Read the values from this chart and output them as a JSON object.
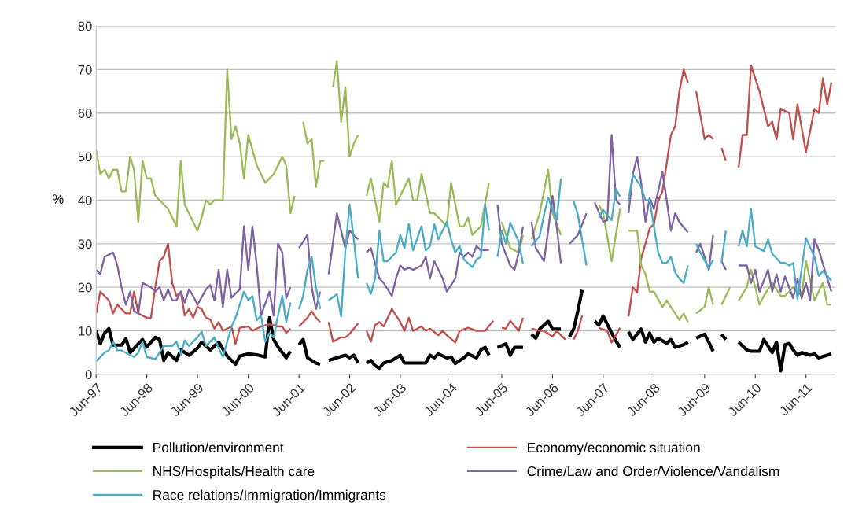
{
  "chart_data": {
    "type": "line",
    "ylabel": "%",
    "ylim": [
      0,
      80
    ],
    "yticks": [
      0,
      10,
      20,
      30,
      40,
      50,
      60,
      70,
      80
    ],
    "xlim": [
      "1997-06",
      "2012-01"
    ],
    "xticks": [
      {
        "value": "1997-06",
        "label": "Jun-97"
      },
      {
        "value": "1998-06",
        "label": "Jun-98"
      },
      {
        "value": "1999-06",
        "label": "Jun-99"
      },
      {
        "value": "2000-06",
        "label": "Jun-00"
      },
      {
        "value": "2001-06",
        "label": "Jun-01"
      },
      {
        "value": "2002-06",
        "label": "Jun-02"
      },
      {
        "value": "2003-06",
        "label": "Jun-03"
      },
      {
        "value": "2004-06",
        "label": "Jun-04"
      },
      {
        "value": "2005-06",
        "label": "Jun-05"
      },
      {
        "value": "2006-06",
        "label": "Jun-06"
      },
      {
        "value": "2007-06",
        "label": "Jun-07"
      },
      {
        "value": "2008-06",
        "label": "Jun-08"
      },
      {
        "value": "2009-06",
        "label": "Jun-09"
      },
      {
        "value": "2010-06",
        "label": "Jun-10"
      },
      {
        "value": "2011-06",
        "label": "Jun-11"
      }
    ],
    "grid": "y",
    "legend": "bottom",
    "marker": "none",
    "line_style": "solid",
    "series": [
      {
        "name": "Pollution/environment",
        "color": "#000000",
        "x": [
          "1997-06",
          "1997-07",
          "1997-08",
          "1997-09",
          "1997-10",
          "1997-12",
          "1998-01",
          "1998-02",
          "1998-04",
          "1998-05",
          "1998-06",
          "1998-08",
          "1998-09",
          "1998-10",
          "1998-11",
          "1999-01",
          "1999-02",
          "1999-04",
          "1999-06",
          "1999-07",
          "1999-09",
          "1999-11",
          "2000-01",
          "2000-03",
          "2000-04",
          "2000-06",
          "2000-08",
          "2000-10",
          "2000-11",
          "2000-12",
          "2001-01",
          "2001-02",
          "2001-03",
          "2001-04",
          "2001-05",
          "2001-06",
          "2001-07",
          "2001-08",
          "2001-10",
          "2001-11",
          "2001-12",
          "2002-01",
          "2002-03",
          "2002-05",
          "2002-06",
          "2002-07",
          "2002-08",
          "2002-09",
          "2002-10",
          "2002-11",
          "2002-12",
          "2003-01",
          "2003-02",
          "2003-04",
          "2003-06",
          "2003-07",
          "2003-09",
          "2003-12",
          "2004-01",
          "2004-02",
          "2004-03",
          "2004-05",
          "2004-06",
          "2004-07",
          "2004-09",
          "2004-10",
          "2004-12",
          "2005-01",
          "2005-02",
          "2005-03",
          "2005-04",
          "2005-05",
          "2005-07",
          "2005-08",
          "2005-09",
          "2005-10",
          "2005-11",
          "2005-12",
          "2006-01",
          "2006-02",
          "2006-03",
          "2006-05",
          "2006-06",
          "2006-08",
          "2006-09",
          "2006-10",
          "2006-11",
          "2006-12",
          "2007-01",
          "2007-02",
          "2007-04",
          "2007-05",
          "2007-06",
          "2007-08",
          "2007-09",
          "2007-10",
          "2007-11",
          "2007-12",
          "2008-01",
          "2008-03",
          "2008-04",
          "2008-05",
          "2008-06",
          "2008-07",
          "2008-09",
          "2008-10",
          "2008-11",
          "2009-01",
          "2009-02",
          "2009-03",
          "2009-04",
          "2009-06",
          "2009-07",
          "2009-08",
          "2009-09",
          "2009-10",
          "2009-11",
          "2009-12",
          "2010-02",
          "2010-04",
          "2010-05",
          "2010-07",
          "2010-08",
          "2010-10",
          "2010-11",
          "2010-12",
          "2011-01",
          "2011-02",
          "2011-03",
          "2011-04",
          "2011-05",
          "2011-07",
          "2011-08",
          "2011-09",
          "2011-11",
          "2011-12"
        ],
        "values": [
          10,
          7,
          9.5,
          10.5,
          6.7,
          6.7,
          8.2,
          5,
          7,
          8,
          6.3,
          8.5,
          8,
          3.2,
          5,
          3.2,
          5.6,
          4.4,
          6,
          7.4,
          5.6,
          7.4,
          4.2,
          2.3,
          4.2,
          4.7,
          4.5,
          4,
          13,
          8,
          6.3,
          5,
          3.8,
          5.3,
          null,
          6.8,
          8,
          3.8,
          2.6,
          2.3,
          null,
          3.2,
          3.8,
          4.4,
          3.8,
          4.4,
          2.6,
          null,
          2.6,
          3.2,
          2,
          1.4,
          2.6,
          3.2,
          4.4,
          2.6,
          2.6,
          2.6,
          4.4,
          3.8,
          4.7,
          3.8,
          4,
          2.5,
          3.8,
          4.7,
          3.8,
          5.6,
          6.2,
          4.4,
          null,
          6.2,
          7,
          4.4,
          6.2,
          6.2,
          6.2,
          null,
          9.2,
          8.3,
          10.4,
          12.2,
          10.4,
          10.4,
          null,
          8.6,
          10.4,
          14.6,
          19.4,
          null,
          12.2,
          11.3,
          13.4,
          9.5,
          7.7,
          6.2,
          null,
          9.8,
          8,
          10.4,
          7.4,
          9.5,
          7.4,
          8.3,
          7.1,
          8,
          6.2,
          6.8,
          7.4,
          null,
          8.3,
          9.2,
          7.4,
          5.3,
          null,
          9.2,
          8,
          null,
          7.4,
          5.6,
          5.3,
          5.3,
          8,
          5,
          7.4,
          0.8,
          6.8,
          7.1,
          5.6,
          4.4,
          5,
          4.4,
          4.7,
          3.8,
          4.4,
          4.7
        ]
      },
      {
        "name": "Economy/economic situation",
        "color": "#c0504d",
        "x": [
          "1997-06",
          "1997-07",
          "1997-08",
          "1997-09",
          "1997-10",
          "1997-11",
          "1997-12",
          "1998-01",
          "1998-02",
          "1998-03",
          "1998-04",
          "1998-06",
          "1998-07",
          "1998-08",
          "1998-09",
          "1998-10",
          "1998-11",
          "1998-12",
          "1999-01",
          "1999-02",
          "1999-03",
          "1999-04",
          "1999-05",
          "1999-06",
          "1999-07",
          "1999-08",
          "1999-09",
          "1999-10",
          "1999-11",
          "1999-12",
          "2000-01",
          "2000-02",
          "2000-03",
          "2000-04",
          "2000-06",
          "2000-07",
          "2000-09",
          "2000-11",
          "2001-01",
          "2001-02",
          "2001-03",
          "2001-04",
          "2001-05",
          "2001-06",
          "2001-08",
          "2001-09",
          "2001-10",
          "2001-11",
          "2001-12",
          "2002-01",
          "2002-02",
          "2002-04",
          "2002-05",
          "2002-06",
          "2002-08",
          "2002-09",
          "2002-10",
          "2002-11",
          "2002-12",
          "2003-01",
          "2003-02",
          "2003-04",
          "2003-06",
          "2003-07",
          "2003-08",
          "2003-09",
          "2003-11",
          "2003-12",
          "2004-01",
          "2004-03",
          "2004-04",
          "2004-05",
          "2004-07",
          "2004-08",
          "2004-10",
          "2004-12",
          "2005-02",
          "2005-04",
          "2005-05",
          "2005-06",
          "2005-07",
          "2005-08",
          "2005-10",
          "2005-11",
          "2005-12",
          "2006-01",
          "2006-03",
          "2006-04",
          "2006-06",
          "2006-07",
          "2006-09",
          "2006-10",
          "2006-11",
          "2006-12",
          "2007-01",
          "2007-02",
          "2007-05",
          "2007-07",
          "2007-08",
          "2007-10",
          "2007-11",
          "2007-12",
          "2008-01",
          "2008-02",
          "2008-03",
          "2008-05",
          "2008-06",
          "2008-07",
          "2008-08",
          "2008-09",
          "2008-10",
          "2008-11",
          "2008-12",
          "2009-01",
          "2009-02",
          "2009-03",
          "2009-04",
          "2009-06",
          "2009-07",
          "2009-08",
          "2009-09",
          "2009-10",
          "2009-11",
          "2009-12",
          "2010-02",
          "2010-03",
          "2010-04",
          "2010-05",
          "2010-07",
          "2010-08",
          "2010-09",
          "2010-10",
          "2010-11",
          "2010-12",
          "2011-02",
          "2011-03",
          "2011-04",
          "2011-06",
          "2011-08",
          "2011-09",
          "2011-10",
          "2011-11",
          "2011-12"
        ],
        "values": [
          14,
          19,
          18,
          17,
          14,
          16,
          15,
          14,
          14,
          19,
          14,
          13,
          13,
          20,
          26,
          27,
          30,
          21,
          18,
          19,
          13.5,
          15,
          13,
          15.5,
          15,
          13,
          12.6,
          10.5,
          12,
          10,
          10.5,
          11,
          7,
          10.7,
          11,
          10,
          11,
          11.5,
          11,
          11,
          9.5,
          10.5,
          null,
          11,
          13,
          14.5,
          13,
          12,
          null,
          12,
          7.5,
          8.5,
          8.5,
          9.3,
          11.7,
          null,
          10,
          7.5,
          11.3,
          12,
          11,
          15,
          12,
          10,
          13,
          10,
          11,
          10,
          10.5,
          9,
          10,
          9,
          7.3,
          10,
          10.7,
          10,
          10,
          12.3,
          null,
          10.7,
          10.5,
          12.3,
          10,
          13,
          null,
          10.5,
          10,
          10,
          8.7,
          10,
          8,
          null,
          8,
          10,
          13.5,
          null,
          10.7,
          10,
          7.3,
          10.7,
          null,
          13.3,
          20,
          18.8,
          26.6,
          33.5,
          34.5,
          39.8,
          42,
          48.5,
          55,
          57,
          65,
          70,
          67,
          null,
          65,
          54,
          55,
          54,
          null,
          52,
          49,
          null,
          47.5,
          55,
          55,
          71,
          65,
          61,
          57,
          58,
          54,
          61,
          60,
          54,
          62,
          51,
          61,
          60,
          68,
          62,
          67
        ]
      },
      {
        "name": "NHS/Hospitals/Health care",
        "color": "#9bbb59",
        "x": [
          "1997-06",
          "1997-07",
          "1997-08",
          "1997-09",
          "1997-10",
          "1997-11",
          "1997-12",
          "1998-01",
          "1998-02",
          "1998-03",
          "1998-04",
          "1998-05",
          "1998-06",
          "1998-07",
          "1998-08",
          "1998-11",
          "1999-01",
          "1999-02",
          "1999-03",
          "1999-05",
          "1999-06",
          "1999-07",
          "1999-08",
          "1999-09",
          "1999-10",
          "1999-11",
          "1999-12",
          "2000-01",
          "2000-02",
          "2000-03",
          "2000-04",
          "2000-05",
          "2000-06",
          "2000-08",
          "2000-10",
          "2000-12",
          "2001-02",
          "2001-03",
          "2001-04",
          "2001-05",
          "2001-06",
          "2001-07",
          "2001-08",
          "2001-09",
          "2001-10",
          "2001-11",
          "2001-12",
          "2002-01",
          "2002-02",
          "2002-03",
          "2002-04",
          "2002-05",
          "2002-06",
          "2002-07",
          "2002-08",
          "2002-09",
          "2002-10",
          "2002-11",
          "2003-01",
          "2003-02",
          "2003-03",
          "2003-04",
          "2003-05",
          "2003-08",
          "2003-09",
          "2003-10",
          "2003-11",
          "2004-01",
          "2004-02",
          "2004-04",
          "2004-05",
          "2004-06",
          "2004-08",
          "2004-09",
          "2004-10",
          "2004-11",
          "2005-01",
          "2005-03",
          "2005-04",
          "2005-06",
          "2005-08",
          "2005-10",
          "2005-11",
          "2005-12",
          "2006-01",
          "2006-03",
          "2006-05",
          "2006-06",
          "2006-08",
          "2006-09",
          "2007-05",
          "2007-06",
          "2007-08",
          "2007-10",
          "2007-11",
          "2007-12",
          "2008-02",
          "2008-03",
          "2008-04",
          "2008-05",
          "2008-06",
          "2008-08",
          "2008-09",
          "2008-10",
          "2008-12",
          "2009-01",
          "2009-02",
          "2009-03",
          "2009-04",
          "2009-06",
          "2009-07",
          "2009-08",
          "2009-09",
          "2009-10",
          "2009-12",
          "2010-01",
          "2010-02",
          "2010-04",
          "2010-05",
          "2010-07",
          "2010-08",
          "2010-10",
          "2010-12",
          "2011-01",
          "2011-03",
          "2011-05",
          "2011-06",
          "2011-08",
          "2011-10",
          "2011-11",
          "2011-12"
        ],
        "values": [
          51.5,
          46,
          47,
          45,
          47,
          47,
          42,
          42,
          50,
          47,
          35,
          49,
          45,
          45,
          41,
          38,
          34,
          49,
          39,
          35,
          33,
          36,
          40,
          39,
          40,
          40,
          40,
          70,
          54,
          57,
          53,
          45,
          55,
          48,
          44,
          46,
          50,
          48,
          37,
          41,
          null,
          58,
          53,
          54,
          43,
          49,
          49,
          null,
          66,
          72,
          58,
          66,
          50,
          53,
          55,
          null,
          41,
          45,
          35,
          44,
          43,
          49,
          39,
          45,
          40,
          40,
          46,
          37,
          37,
          35,
          34,
          44,
          34,
          34,
          36,
          32,
          34,
          44,
          null,
          35,
          29,
          28,
          32,
          null,
          31,
          37,
          47,
          37,
          32,
          null,
          39,
          37,
          26,
          38,
          null,
          33,
          33,
          25,
          23,
          19,
          19,
          15.5,
          17,
          15.5,
          12.5,
          14,
          12,
          null,
          14,
          15.5,
          20,
          16,
          null,
          16,
          20,
          null,
          17,
          20,
          24,
          16,
          18,
          21,
          18,
          18,
          20,
          18,
          26,
          17,
          21,
          16,
          16
        ]
      },
      {
        "name": "Crime/Law and Order/Violence/Vandalism",
        "color": "#8064a2",
        "x": [
          "1997-06",
          "1997-07",
          "1997-08",
          "1997-10",
          "1997-11",
          "1997-12",
          "1998-01",
          "1998-02",
          "1998-03",
          "1998-04",
          "1998-05",
          "1998-07",
          "1998-08",
          "1998-09",
          "1998-10",
          "1998-11",
          "1998-12",
          "1999-01",
          "1999-02",
          "1999-03",
          "1999-04",
          "1999-05",
          "1999-06",
          "1999-08",
          "1999-09",
          "1999-10",
          "1999-11",
          "1999-12",
          "2000-01",
          "2000-02",
          "2000-04",
          "2000-05",
          "2000-06",
          "2000-07",
          "2000-08",
          "2000-09",
          "2000-11",
          "2000-12",
          "2001-01",
          "2001-02",
          "2001-03",
          "2001-04",
          "2001-05",
          "2001-06",
          "2001-08",
          "2001-09",
          "2001-10",
          "2001-11",
          "2001-12",
          "2002-01",
          "2002-03",
          "2002-05",
          "2002-06",
          "2002-08",
          "2002-09",
          "2002-10",
          "2002-11",
          "2003-01",
          "2003-02",
          "2003-04",
          "2003-05",
          "2003-06",
          "2003-07",
          "2003-08",
          "2003-09",
          "2003-11",
          "2003-12",
          "2004-01",
          "2004-02",
          "2004-04",
          "2004-05",
          "2004-06",
          "2004-07",
          "2004-08",
          "2004-09",
          "2004-10",
          "2004-11",
          "2004-12",
          "2005-01",
          "2005-03",
          "2005-04",
          "2005-05",
          "2005-06",
          "2005-08",
          "2005-09",
          "2005-10",
          "2005-11",
          "2005-12",
          "2006-01",
          "2006-02",
          "2006-04",
          "2006-05",
          "2006-06",
          "2006-07",
          "2006-08",
          "2006-09",
          "2006-10",
          "2006-12",
          "2007-02",
          "2007-03",
          "2007-04",
          "2007-06",
          "2007-07",
          "2007-08",
          "2007-09",
          "2007-10",
          "2007-11",
          "2007-12",
          "2008-01",
          "2008-02",
          "2008-03",
          "2008-04",
          "2008-05",
          "2008-06",
          "2008-07",
          "2008-08",
          "2008-09",
          "2008-10",
          "2008-11",
          "2008-12",
          "2009-02",
          "2009-03",
          "2009-04",
          "2009-05",
          "2009-07",
          "2009-08",
          "2009-09",
          "2009-10",
          "2009-11",
          "2009-12",
          "2010-02",
          "2010-04",
          "2010-05",
          "2010-06",
          "2010-07",
          "2010-09",
          "2010-10",
          "2010-11",
          "2010-12",
          "2011-01",
          "2011-03",
          "2011-04",
          "2011-05",
          "2011-06",
          "2011-07",
          "2011-08",
          "2011-09",
          "2011-11",
          "2011-12"
        ],
        "values": [
          24,
          23,
          27,
          28,
          25,
          20,
          16,
          19,
          14.5,
          14,
          21,
          20,
          19,
          20,
          17,
          19.5,
          17,
          17,
          19,
          16.5,
          19.5,
          18,
          16,
          19.5,
          20.5,
          17,
          24,
          15.5,
          24,
          17.6,
          19.5,
          34,
          24,
          34,
          25,
          13.5,
          19,
          13.5,
          30,
          28,
          17.5,
          20,
          null,
          29,
          32,
          20,
          15,
          19,
          null,
          23,
          37,
          29,
          33,
          31,
          null,
          28,
          29,
          22,
          21,
          18,
          22,
          25,
          24,
          24.5,
          24,
          25,
          27,
          22,
          26,
          22,
          19,
          20.5,
          22,
          28,
          27,
          28,
          27,
          29.5,
          28.5,
          28.6,
          null,
          39,
          30,
          25,
          24,
          28,
          34,
          null,
          35,
          29,
          26,
          33,
          41,
          34,
          25.5,
          null,
          30,
          32,
          37,
          null,
          39.5,
          35,
          35.4,
          55,
          40,
          39,
          null,
          37,
          46,
          50,
          44,
          35,
          40.5,
          38,
          42,
          46.5,
          40,
          33,
          37,
          35,
          32.6,
          null,
          28,
          30,
          24,
          32,
          null,
          26,
          24,
          null,
          25,
          25,
          21,
          24,
          19,
          24,
          19,
          23,
          19,
          22.5,
          17.5,
          22,
          17.5,
          21,
          17,
          31,
          28.6,
          22,
          19
        ]
      },
      {
        "name": "Race relations/Immigration/Immigrants",
        "color": "#4bacc6",
        "x": [
          "1997-06",
          "1997-08",
          "1997-09",
          "1997-10",
          "1997-11",
          "1997-12",
          "1998-03",
          "1998-04",
          "1998-05",
          "1998-06",
          "1998-08",
          "1998-09",
          "1998-10",
          "1998-12",
          "1999-01",
          "1999-02",
          "1999-03",
          "1999-04",
          "1999-06",
          "1999-07",
          "1999-08",
          "1999-10",
          "1999-11",
          "1999-12",
          "2000-02",
          "2000-03",
          "2000-05",
          "2000-06",
          "2000-07",
          "2000-08",
          "2000-09",
          "2000-10",
          "2000-11",
          "2000-12",
          "2001-01",
          "2001-02",
          "2001-03",
          "2001-04",
          "2001-05",
          "2001-06",
          "2001-07",
          "2001-08",
          "2001-09",
          "2001-10",
          "2001-11",
          "2001-12",
          "2002-01",
          "2002-03",
          "2002-04",
          "2002-05",
          "2002-06",
          "2002-07",
          "2002-08",
          "2002-09",
          "2002-10",
          "2002-11",
          "2002-12",
          "2003-01",
          "2003-02",
          "2003-03",
          "2003-05",
          "2003-06",
          "2003-07",
          "2003-08",
          "2003-09",
          "2003-11",
          "2003-12",
          "2004-01",
          "2004-02",
          "2004-03",
          "2004-05",
          "2004-06",
          "2004-07",
          "2004-08",
          "2004-09",
          "2004-11",
          "2004-12",
          "2005-01",
          "2005-02",
          "2005-03",
          "2005-04",
          "2005-05",
          "2005-06",
          "2005-07",
          "2005-08",
          "2005-10",
          "2005-11",
          "2005-12",
          "2006-01",
          "2006-03",
          "2006-04",
          "2006-05",
          "2006-07",
          "2006-08",
          "2006-09",
          "2006-11",
          "2006-12",
          "2007-02",
          "2007-03",
          "2007-05",
          "2007-06",
          "2007-08",
          "2007-09",
          "2007-10",
          "2007-11",
          "2007-12",
          "2008-01",
          "2008-03",
          "2008-04",
          "2008-05",
          "2008-06",
          "2008-07",
          "2008-08",
          "2008-09",
          "2008-10",
          "2008-11",
          "2008-12",
          "2009-01",
          "2009-02",
          "2009-03",
          "2009-04",
          "2009-05",
          "2009-07",
          "2009-08",
          "2009-09",
          "2009-10",
          "2009-11",
          "2009-12",
          "2010-02",
          "2010-03",
          "2010-04",
          "2010-05",
          "2010-06",
          "2010-08",
          "2010-09",
          "2010-10",
          "2010-12",
          "2011-01",
          "2011-02",
          "2011-03",
          "2011-04",
          "2011-05",
          "2011-06",
          "2011-08",
          "2011-09",
          "2011-10",
          "2011-12"
        ],
        "values": [
          3,
          5,
          5.5,
          7.5,
          5.5,
          5.5,
          4,
          5,
          7.5,
          4,
          3.5,
          5,
          6.5,
          6.5,
          7.5,
          4.5,
          7.8,
          6.5,
          8.5,
          9.8,
          6.5,
          8.5,
          6,
          4,
          11,
          13,
          19,
          17,
          18,
          12.4,
          13.5,
          7.5,
          9.5,
          8.5,
          13.5,
          18,
          12,
          16.5,
          null,
          15,
          18,
          24,
          27,
          20,
          15,
          null,
          17,
          18.4,
          13.3,
          28.5,
          39,
          31,
          22,
          null,
          21,
          18.5,
          22,
          33,
          26,
          26,
          28,
          32,
          29,
          34.5,
          28.5,
          34,
          28.5,
          29.4,
          34.5,
          31,
          35,
          31,
          28,
          29.5,
          26.4,
          24.6,
          26.4,
          27,
          39,
          33,
          null,
          27,
          33,
          30,
          34.8,
          30.5,
          25.3,
          null,
          29.4,
          31.8,
          36.6,
          40.6,
          35.4,
          45,
          null,
          39.7,
          36.7,
          25,
          null,
          36,
          37.8,
          35.4,
          42.6,
          40.8,
          null,
          40,
          46,
          43,
          40,
          40,
          34,
          28,
          25.6,
          25.6,
          27,
          23.4,
          22,
          21,
          25,
          null,
          30,
          28,
          24.4,
          26.3,
          null,
          25.6,
          33,
          null,
          29.4,
          33,
          29.4,
          38,
          29.4,
          28.3,
          31,
          27.7,
          25.6,
          25.6,
          25,
          25.6,
          17.3,
          24.3,
          31.3,
          27,
          22.6,
          23.8,
          21.5
        ]
      }
    ]
  }
}
